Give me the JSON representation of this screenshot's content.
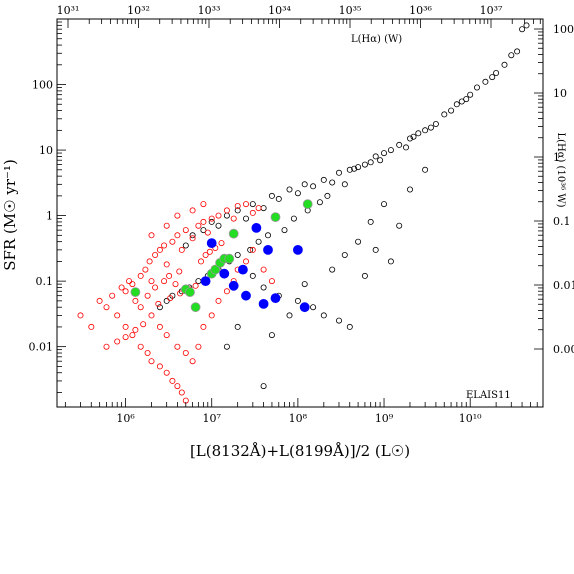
{
  "chart_data": {
    "type": "scatter",
    "x_scale": "log",
    "y_scale": "log",
    "xlim": [
      160000,
      70000000000
    ],
    "ylim": [
      0.0012,
      1000
    ],
    "xlabel": "[L(8132Å)+L(8199Å)]/2 (L☉)",
    "ylabel": "SFR (M☉ yr⁻¹)",
    "top_axis_label": "L(Hα) (W)",
    "right_axis_label": "L(Hα) (10³⁶ W)",
    "annotation": "ELAIS11",
    "x_tick_labels": [
      {
        "value": 1000000,
        "label": "10⁶"
      },
      {
        "value": 10000000,
        "label": "10⁷"
      },
      {
        "value": 100000000,
        "label": "10⁸"
      },
      {
        "value": 1000000000,
        "label": "10⁹"
      },
      {
        "value": 10000000000,
        "label": "10¹⁰"
      }
    ],
    "y_tick_labels": [
      {
        "value": 0.01,
        "label": "0.01"
      },
      {
        "value": 0.1,
        "label": "0.1"
      },
      {
        "value": 1,
        "label": "1"
      },
      {
        "value": 10,
        "label": "10"
      },
      {
        "value": 100,
        "label": "100"
      }
    ],
    "top_tick_labels": [
      {
        "value": 1e+31,
        "label": "10³¹"
      },
      {
        "value": 1e+32,
        "label": "10³²"
      },
      {
        "value": 1e+33,
        "label": "10³³"
      },
      {
        "value": 1e+34,
        "label": "10³⁴"
      },
      {
        "value": 1e+35,
        "label": "10³⁵"
      },
      {
        "value": 1e+36,
        "label": "10³⁶"
      },
      {
        "value": 1e+37,
        "label": "10³⁷"
      }
    ],
    "right_tick_labels": [
      {
        "value": 0.001,
        "label": "0.00"
      },
      {
        "value": 0.01,
        "label": "0.01"
      },
      {
        "value": 0.1,
        "label": "0.1"
      },
      {
        "value": 1,
        "label": "1"
      },
      {
        "value": 10,
        "label": "10"
      },
      {
        "value": 100,
        "label": "100"
      }
    ],
    "colors": {
      "black_series": "#000000",
      "red_series": "#ff0000",
      "green_series": "#22dd22",
      "blue_series": "#0000ff"
    },
    "series": [
      {
        "marker": "open-circle",
        "color": "#000000",
        "points": [
          [
            5000000,
            0.35
          ],
          [
            6000000,
            0.5
          ],
          [
            8000000,
            0.6
          ],
          [
            10000000,
            0.8
          ],
          [
            12000000,
            0.7
          ],
          [
            15000000,
            1.0
          ],
          [
            20000000,
            1.2
          ],
          [
            25000000,
            0.9
          ],
          [
            30000000,
            1.5
          ],
          [
            40000000,
            1.3
          ],
          [
            50000000,
            2.0
          ],
          [
            60000000,
            1.8
          ],
          [
            80000000,
            2.5
          ],
          [
            100000000,
            2.2
          ],
          [
            120000000,
            3.0
          ],
          [
            150000000,
            2.8
          ],
          [
            200000000,
            3.5
          ],
          [
            250000000,
            3.2
          ],
          [
            300000000,
            4.5
          ],
          [
            400000000,
            5.0
          ],
          [
            500000000,
            5.5
          ],
          [
            600000000,
            6.0
          ],
          [
            800000000,
            8.0
          ],
          [
            1000000000,
            9.0
          ],
          [
            1200000000,
            10.0
          ],
          [
            1500000000,
            12.0
          ],
          [
            2000000000,
            15.0
          ],
          [
            2500000000,
            18.0
          ],
          [
            3000000000,
            20.0
          ],
          [
            4000000000,
            25.0
          ],
          [
            5000000000,
            35.0
          ],
          [
            6000000000,
            40.0
          ],
          [
            8000000000,
            55.0
          ],
          [
            10000000000,
            70.0
          ],
          [
            12000000000,
            90.0
          ],
          [
            15000000000,
            110.0
          ],
          [
            20000000000,
            150.0
          ],
          [
            25000000000,
            200.0
          ],
          [
            30000000000,
            280.0
          ],
          [
            40000000000,
            700.0
          ],
          [
            45000000000,
            800.0
          ],
          [
            35000000000,
            320.0
          ],
          [
            18000000000,
            130.0
          ],
          [
            9000000000,
            60.0
          ],
          [
            7000000000,
            50.0
          ],
          [
            3500000000,
            22.0
          ],
          [
            2200000000,
            16.0
          ],
          [
            1800000000,
            11.0
          ],
          [
            900000000,
            7.0
          ],
          [
            700000000,
            6.5
          ],
          [
            450000000,
            5.2
          ],
          [
            350000000,
            3.0
          ],
          [
            220000000,
            2.0
          ],
          [
            180000000,
            1.6
          ],
          [
            130000000,
            1.2
          ],
          [
            90000000,
            0.9
          ],
          [
            70000000,
            0.6
          ],
          [
            45000000,
            0.5
          ],
          [
            35000000,
            0.4
          ],
          [
            28000000,
            0.3
          ],
          [
            20000000,
            0.25
          ],
          [
            16000000,
            0.2
          ],
          [
            12000000,
            0.15
          ],
          [
            9000000,
            0.12
          ],
          [
            7000000,
            0.1
          ],
          [
            5500000,
            0.08
          ],
          [
            4500000,
            0.07
          ],
          [
            3500000,
            0.06
          ],
          [
            3000000,
            0.05
          ],
          [
            2500000,
            0.04
          ],
          [
            30000000,
            0.12
          ],
          [
            40000000,
            0.08
          ],
          [
            60000000,
            0.06
          ],
          [
            100000000,
            0.05
          ],
          [
            150000000,
            0.04
          ],
          [
            200000000,
            0.03
          ],
          [
            300000000,
            0.025
          ],
          [
            400000000,
            0.02
          ],
          [
            20000000,
            0.02
          ],
          [
            15000000,
            0.01
          ],
          [
            50000000,
            0.015
          ],
          [
            80000000,
            0.03
          ],
          [
            120000000,
            0.09
          ],
          [
            250000000,
            0.15
          ],
          [
            350000000,
            0.25
          ],
          [
            500000000,
            0.4
          ],
          [
            700000000,
            0.8
          ],
          [
            1000000000,
            1.5
          ],
          [
            1500000000,
            0.7
          ],
          [
            2000000000,
            2.5
          ],
          [
            3000000000,
            5.0
          ],
          [
            800000000,
            0.3
          ],
          [
            600000000,
            0.12
          ],
          [
            1200000000,
            0.2
          ],
          [
            40000000,
            0.0025
          ]
        ]
      },
      {
        "marker": "open-circle",
        "color": "#ff0000",
        "points": [
          [
            300000,
            0.03
          ],
          [
            400000,
            0.02
          ],
          [
            500000,
            0.05
          ],
          [
            600000,
            0.04
          ],
          [
            700000,
            0.06
          ],
          [
            800000,
            0.03
          ],
          [
            900000,
            0.08
          ],
          [
            1000000,
            0.07
          ],
          [
            1100000,
            0.1
          ],
          [
            1200000,
            0.09
          ],
          [
            1300000,
            0.05
          ],
          [
            1500000,
            0.12
          ],
          [
            1700000,
            0.15
          ],
          [
            1900000,
            0.2
          ],
          [
            2000000,
            0.1
          ],
          [
            2200000,
            0.25
          ],
          [
            2500000,
            0.3
          ],
          [
            2800000,
            0.35
          ],
          [
            3000000,
            0.18
          ],
          [
            3500000,
            0.4
          ],
          [
            4000000,
            0.5
          ],
          [
            4500000,
            0.3
          ],
          [
            5000000,
            0.6
          ],
          [
            6000000,
            0.45
          ],
          [
            7000000,
            0.7
          ],
          [
            8000000,
            0.8
          ],
          [
            9000000,
            0.55
          ],
          [
            10000000,
            0.9
          ],
          [
            12000000,
            1.0
          ],
          [
            15000000,
            1.2
          ],
          [
            18000000,
            0.9
          ],
          [
            20000000,
            1.4
          ],
          [
            25000000,
            1.5
          ],
          [
            30000000,
            1.1
          ],
          [
            35000000,
            1.3
          ],
          [
            1000000,
            0.02
          ],
          [
            1200000,
            0.015
          ],
          [
            1500000,
            0.01
          ],
          [
            1800000,
            0.008
          ],
          [
            2000000,
            0.006
          ],
          [
            2500000,
            0.005
          ],
          [
            3000000,
            0.004
          ],
          [
            3500000,
            0.003
          ],
          [
            4000000,
            0.0025
          ],
          [
            4500000,
            0.002
          ],
          [
            5000000,
            0.0015
          ],
          [
            2000000,
            0.03
          ],
          [
            2500000,
            0.02
          ],
          [
            3000000,
            0.015
          ],
          [
            4000000,
            0.01
          ],
          [
            5000000,
            0.008
          ],
          [
            6000000,
            0.006
          ],
          [
            7000000,
            0.01
          ],
          [
            8000000,
            0.02
          ],
          [
            10000000,
            0.03
          ],
          [
            12000000,
            0.05
          ],
          [
            15000000,
            0.07
          ],
          [
            18000000,
            0.1
          ],
          [
            20000000,
            0.15
          ],
          [
            25000000,
            0.2
          ],
          [
            30000000,
            0.3
          ],
          [
            40000000,
            0.15
          ],
          [
            50000000,
            0.1
          ],
          [
            1500000,
            0.04
          ],
          [
            1800000,
            0.06
          ],
          [
            2200000,
            0.08
          ],
          [
            2800000,
            0.1
          ],
          [
            3200000,
            0.12
          ],
          [
            3800000,
            0.09
          ],
          [
            4200000,
            0.14
          ],
          [
            600000,
            0.01
          ],
          [
            800000,
            0.012
          ],
          [
            1000000,
            0.014
          ],
          [
            1300000,
            0.018
          ],
          [
            1600000,
            0.022
          ],
          [
            2400000,
            0.045
          ],
          [
            3300000,
            0.055
          ],
          [
            4300000,
            0.065
          ],
          [
            5500000,
            0.075
          ],
          [
            6500000,
            0.085
          ],
          [
            7500000,
            0.2
          ],
          [
            8500000,
            0.25
          ],
          [
            9500000,
            0.28
          ],
          [
            11000000,
            0.32
          ],
          [
            13000000,
            0.38
          ],
          [
            2000000,
            0.5
          ],
          [
            3000000,
            0.7
          ],
          [
            4000000,
            1.0
          ],
          [
            6000000,
            1.2
          ],
          [
            8000000,
            1.5
          ]
        ]
      },
      {
        "marker": "filled-circle",
        "color": "#22dd22",
        "points": [
          [
            1300000,
            0.068
          ],
          [
            5000000,
            0.075
          ],
          [
            5600000,
            0.068
          ],
          [
            6500000,
            0.04
          ],
          [
            10000000,
            0.13
          ],
          [
            11000000,
            0.15
          ],
          [
            12500000,
            0.19
          ],
          [
            14000000,
            0.22
          ],
          [
            16000000,
            0.22
          ],
          [
            18000000,
            0.53
          ],
          [
            55000000,
            0.95
          ],
          [
            130000000,
            1.5
          ]
        ]
      },
      {
        "marker": "filled-circle",
        "color": "#0000ff",
        "points": [
          [
            8500000,
            0.1
          ],
          [
            10000000,
            0.38
          ],
          [
            14000000,
            0.13
          ],
          [
            18000000,
            0.085
          ],
          [
            23000000,
            0.15
          ],
          [
            25000000,
            0.06
          ],
          [
            33000000,
            0.65
          ],
          [
            40000000,
            0.045
          ],
          [
            45000000,
            0.3
          ],
          [
            55000000,
            0.055
          ],
          [
            100000000,
            0.3
          ],
          [
            120000000,
            0.04
          ]
        ]
      }
    ]
  }
}
